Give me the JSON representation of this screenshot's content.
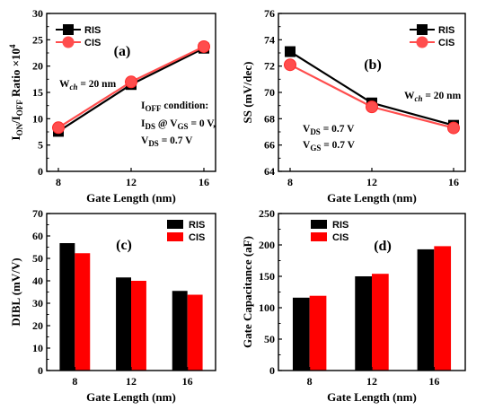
{
  "chart_data": [
    {
      "id": "a",
      "type": "line",
      "panel_label": "(a)",
      "xlabel": "Gate Length (nm)",
      "ylabel_html": "I<tspan font-size='9' dy='3'>ON</tspan><tspan dy='-3'>/I</tspan><tspan font-size='9' dy='3'>OFF</tspan><tspan dy='-3'> Ratio ×10</tspan><tspan font-size='9' dy='-5'>4</tspan>",
      "x": [
        8,
        12,
        16
      ],
      "xticks": [
        "8",
        "12",
        "16"
      ],
      "ylim": [
        0,
        30
      ],
      "yticks": [
        0,
        5,
        10,
        15,
        20,
        25,
        30
      ],
      "series": [
        {
          "name": "RIS",
          "values": [
            7.6,
            16.5,
            23.4
          ],
          "color": "#000000",
          "marker": "square"
        },
        {
          "name": "CIS",
          "values": [
            8.3,
            17.0,
            23.7
          ],
          "color": "#ff4d4d",
          "marker": "circle"
        }
      ],
      "annotations": [
        "W<tspan font-size='9' dy='3' font-style='italic'>ch</tspan><tspan dy='-3'> = 20 nm</tspan>",
        "I<tspan font-size='9' dy='3'>OFF</tspan><tspan dy='-3'> condition:</tspan>",
        "I<tspan font-size='9' dy='3'>DS</tspan><tspan dy='-3'> @ V</tspan><tspan font-size='9' dy='3'>GS</tspan><tspan dy='-3'> = 0 V,</tspan>",
        "V<tspan font-size='9' dy='3'>DS</tspan><tspan dy='-3'> = 0.7 V</tspan>"
      ]
    },
    {
      "id": "b",
      "type": "line",
      "panel_label": "(b)",
      "xlabel": "Gate Length (nm)",
      "ylabel_html": "SS (mV/dec)",
      "x": [
        8,
        12,
        16
      ],
      "xticks": [
        "8",
        "12",
        "16"
      ],
      "ylim": [
        64,
        76
      ],
      "yticks": [
        64,
        66,
        68,
        70,
        72,
        74,
        76
      ],
      "series": [
        {
          "name": "RIS",
          "values": [
            73.1,
            69.2,
            67.5
          ],
          "color": "#000000",
          "marker": "square"
        },
        {
          "name": "CIS",
          "values": [
            72.1,
            68.9,
            67.3
          ],
          "color": "#ff4d4d",
          "marker": "circle"
        }
      ],
      "annotations": [
        "W<tspan font-size='9' dy='3' font-style='italic'>ch</tspan><tspan dy='-3'> = 20 nm</tspan>",
        "V<tspan font-size='9' dy='3'>DS</tspan><tspan dy='-3'> = 0.7 V</tspan>",
        "V<tspan font-size='9' dy='3'>GS</tspan><tspan dy='-3'> = 0.7 V</tspan>"
      ]
    },
    {
      "id": "c",
      "type": "bar",
      "panel_label": "(c)",
      "xlabel": "Gate Length (nm)",
      "ylabel_html": "DIBL (mV/V)",
      "categories": [
        "8",
        "12",
        "16"
      ],
      "ylim": [
        0,
        70
      ],
      "yticks": [
        0,
        10,
        20,
        30,
        40,
        50,
        60,
        70
      ],
      "series": [
        {
          "name": "RIS",
          "values": [
            56.8,
            41.5,
            35.5
          ],
          "color": "#000000"
        },
        {
          "name": "CIS",
          "values": [
            52.3,
            40.0,
            33.8
          ],
          "color": "#ff0000"
        }
      ]
    },
    {
      "id": "d",
      "type": "bar",
      "panel_label": "(d)",
      "xlabel": "Gate Length (nm)",
      "ylabel_html": "Gate Capacitance (aF)",
      "categories": [
        "8",
        "12",
        "16"
      ],
      "ylim": [
        0,
        250
      ],
      "yticks": [
        0,
        50,
        100,
        150,
        200,
        250
      ],
      "series": [
        {
          "name": "RIS",
          "values": [
            116,
            150,
            193
          ],
          "color": "#000000"
        },
        {
          "name": "CIS",
          "values": [
            119,
            154,
            198
          ],
          "color": "#ff0000"
        }
      ]
    }
  ]
}
